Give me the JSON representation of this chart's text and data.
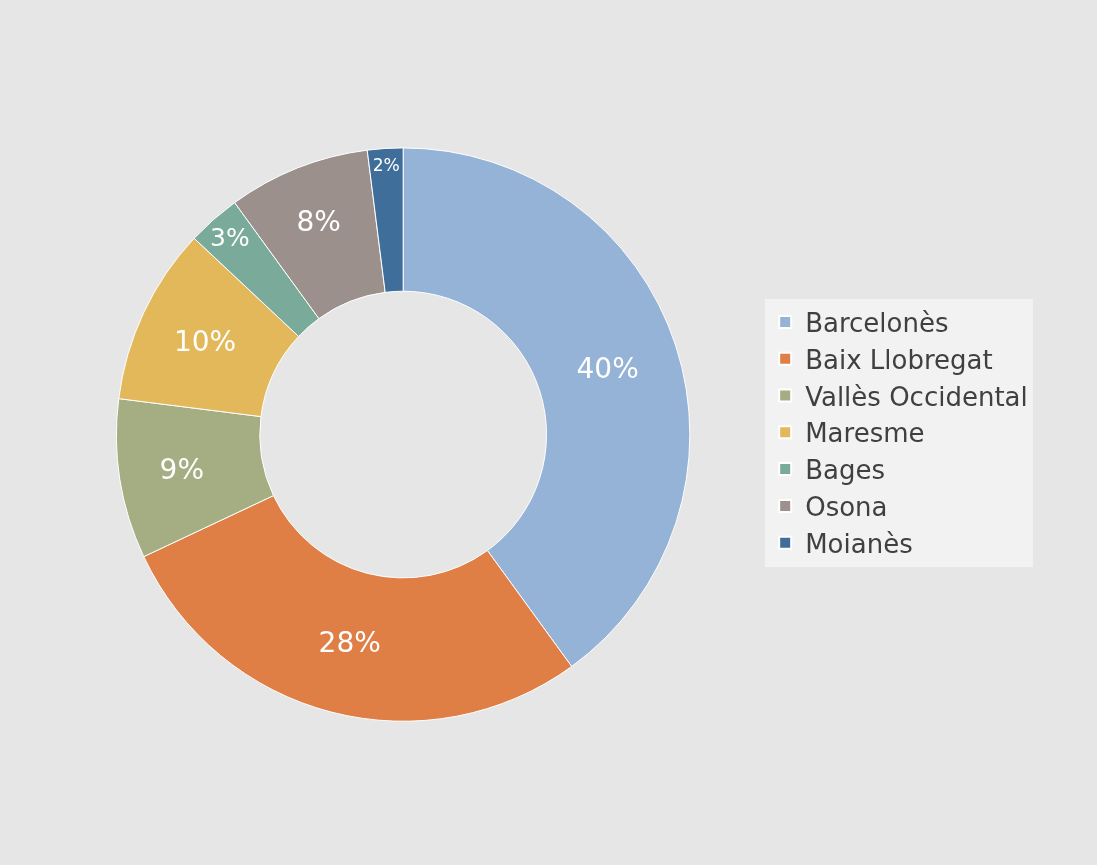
{
  "chart_data": {
    "type": "donut",
    "categories": [
      "Barcelonès",
      "Baix Llobregat",
      "Vallès Occidental",
      "Maresme",
      "Bages",
      "Osona",
      "Moianès"
    ],
    "values": [
      40,
      28,
      9,
      10,
      3,
      8,
      2
    ],
    "value_labels": [
      "40%",
      "28%",
      "9%",
      "10%",
      "3%",
      "8%",
      "2%"
    ],
    "colors": [
      "#95b3d7",
      "#e07f45",
      "#a5ad82",
      "#e3b85a",
      "#7aaa9a",
      "#9c908c",
      "#3e6e99"
    ],
    "legend": "right"
  }
}
